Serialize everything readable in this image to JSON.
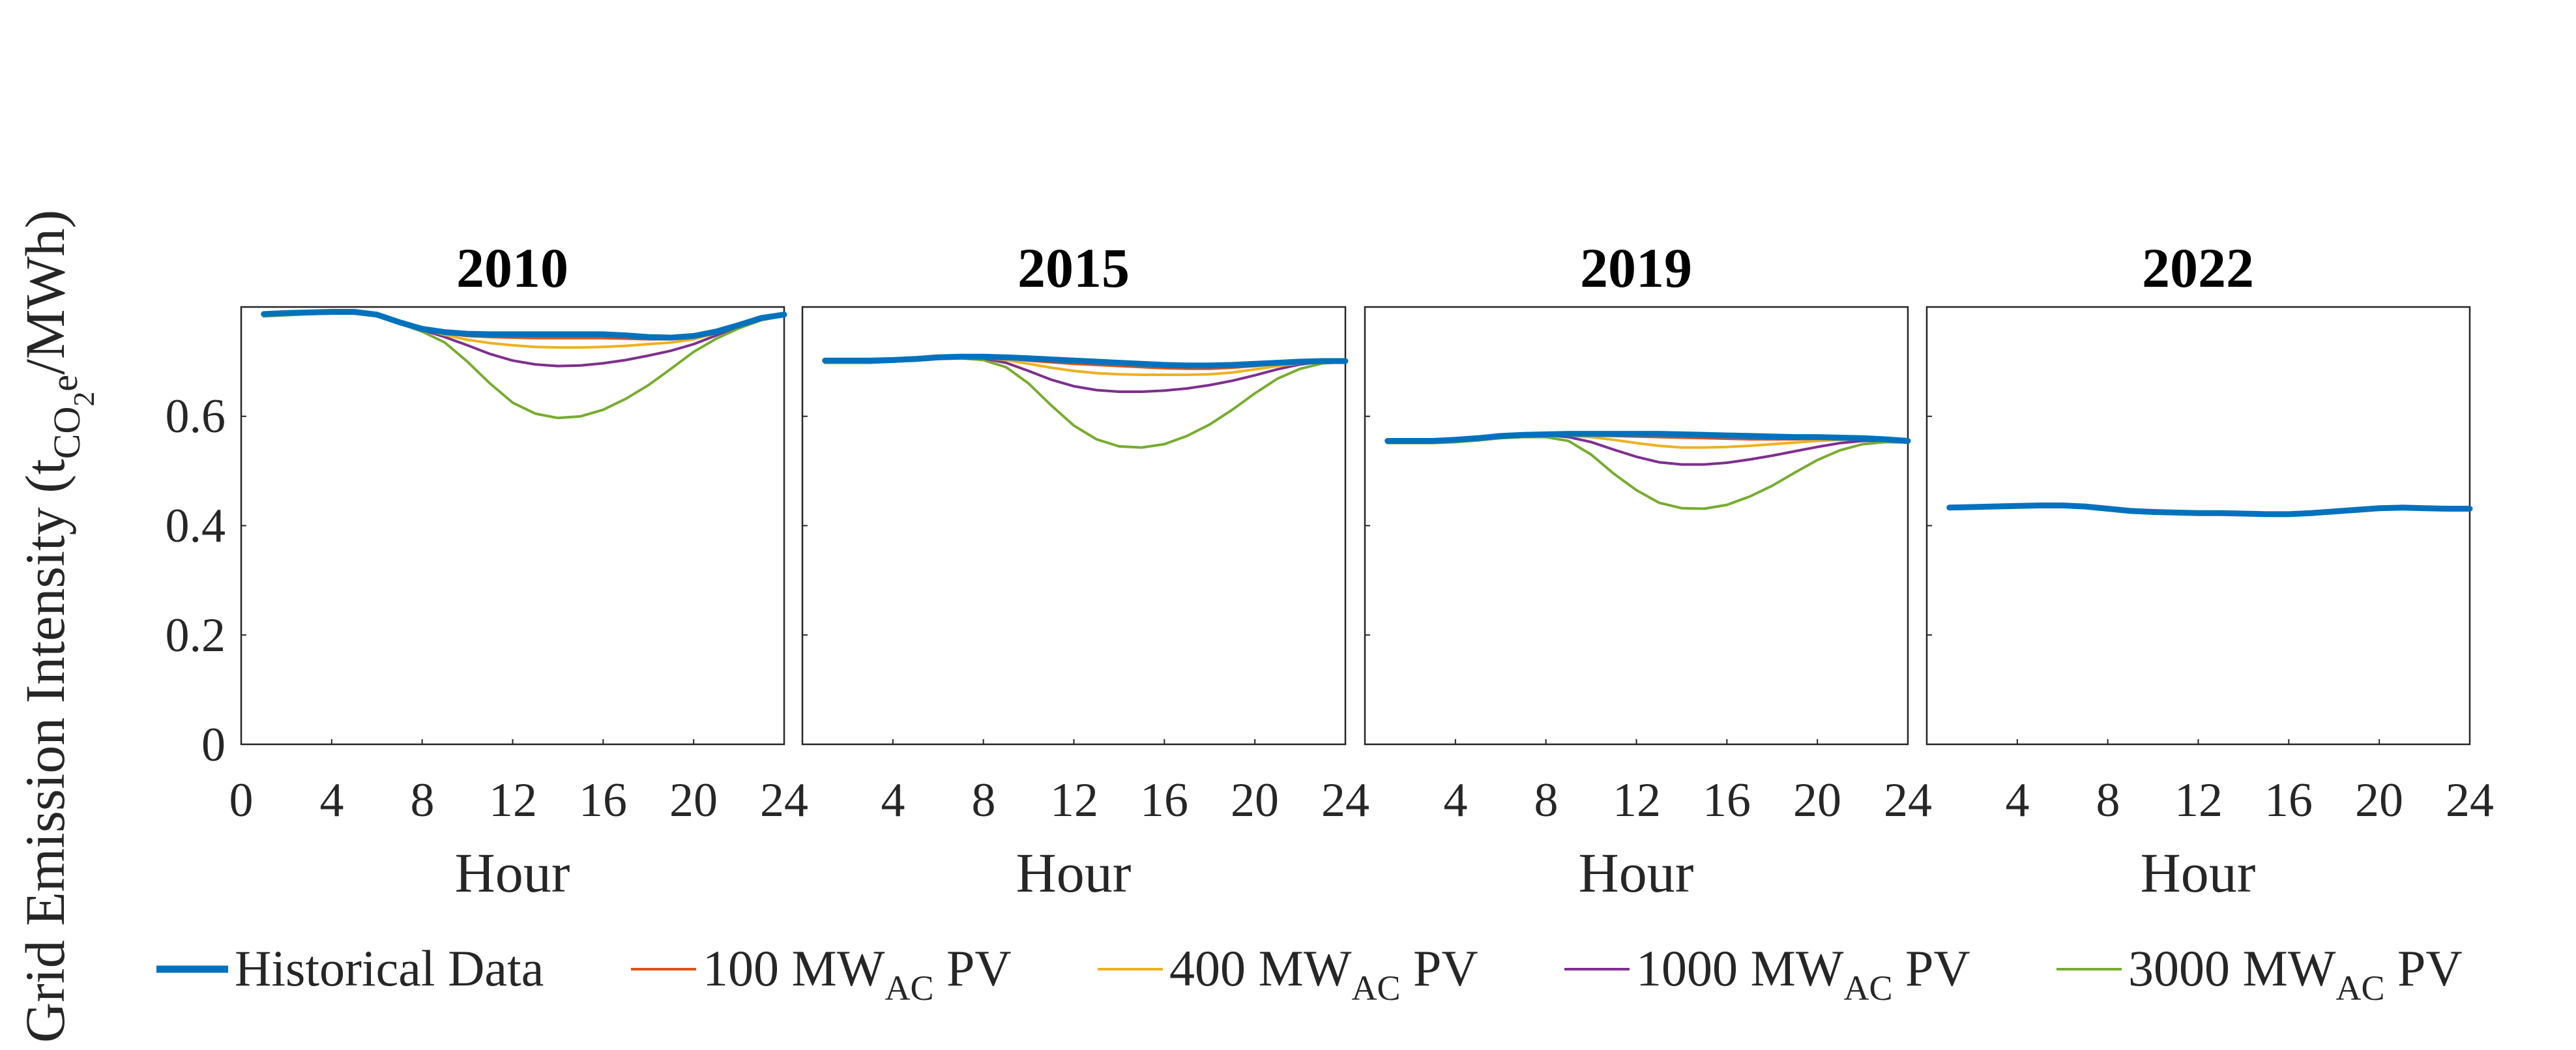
{
  "chart_data": {
    "type": "line",
    "ylabel": {
      "prefix": "Grid Emission Intensity (t",
      "sub_CO": "CO",
      "sub_2": "2",
      "sub_e": "e",
      "suffix": "/MWh)"
    },
    "ylim": [
      0,
      0.8
    ],
    "yticks": [
      0,
      0.2,
      0.4,
      0.6
    ],
    "ytick_labels": [
      "0",
      "0.2",
      "0.4",
      "0.6"
    ],
    "xlim": [
      0,
      24
    ],
    "xlabel": "Hour",
    "hours": [
      1,
      2,
      3,
      4,
      5,
      6,
      7,
      8,
      9,
      10,
      11,
      12,
      13,
      14,
      15,
      16,
      17,
      18,
      19,
      20,
      21,
      22,
      23,
      24
    ],
    "legend": [
      {
        "key": "historical",
        "label": "Historical Data",
        "main": "Historical Data",
        "sub": "",
        "tail": "",
        "color": "#0072BD"
      },
      {
        "key": "pv100",
        "label": "100 MWAC PV",
        "main": "100 MW",
        "sub": "AC",
        "tail": " PV",
        "color": "#D95319"
      },
      {
        "key": "pv400",
        "label": "400 MWAC PV",
        "main": "400 MW",
        "sub": "AC",
        "tail": " PV",
        "color": "#EDB120"
      },
      {
        "key": "pv1000",
        "label": "1000 MWAC PV",
        "main": "1000 MW",
        "sub": "AC",
        "tail": " PV",
        "color": "#7E2F8E"
      },
      {
        "key": "pv3000",
        "label": "3000 MWAC PV",
        "main": "3000 MW",
        "sub": "AC",
        "tail": " PV",
        "color": "#77AC30"
      }
    ],
    "panels": [
      {
        "title": "2010",
        "xticks": [
          "0",
          "4",
          "8",
          "12",
          "16",
          "20",
          "24"
        ],
        "series": {
          "historical": [
            0.787,
            0.789,
            0.79,
            0.791,
            0.791,
            0.786,
            0.772,
            0.76,
            0.754,
            0.751,
            0.75,
            0.75,
            0.75,
            0.75,
            0.75,
            0.75,
            0.748,
            0.745,
            0.744,
            0.747,
            0.755,
            0.767,
            0.78,
            0.786
          ],
          "pv100": [
            0.787,
            0.789,
            0.79,
            0.791,
            0.791,
            0.786,
            0.772,
            0.76,
            0.752,
            0.747,
            0.745,
            0.744,
            0.743,
            0.743,
            0.743,
            0.743,
            0.742,
            0.741,
            0.741,
            0.745,
            0.754,
            0.767,
            0.78,
            0.786
          ],
          "pv400": [
            0.787,
            0.789,
            0.79,
            0.791,
            0.791,
            0.786,
            0.772,
            0.759,
            0.749,
            0.74,
            0.734,
            0.73,
            0.727,
            0.726,
            0.726,
            0.727,
            0.729,
            0.732,
            0.735,
            0.741,
            0.752,
            0.766,
            0.78,
            0.786
          ],
          "pv1000": [
            0.787,
            0.789,
            0.79,
            0.791,
            0.791,
            0.786,
            0.772,
            0.758,
            0.745,
            0.73,
            0.714,
            0.702,
            0.695,
            0.692,
            0.693,
            0.697,
            0.703,
            0.711,
            0.72,
            0.732,
            0.748,
            0.765,
            0.779,
            0.786
          ],
          "pv3000": [
            0.783,
            0.785,
            0.787,
            0.788,
            0.788,
            0.783,
            0.77,
            0.755,
            0.735,
            0.7,
            0.66,
            0.625,
            0.605,
            0.597,
            0.6,
            0.612,
            0.632,
            0.657,
            0.687,
            0.718,
            0.742,
            0.761,
            0.776,
            0.784
          ]
        }
      },
      {
        "title": "2015",
        "xticks": [
          "4",
          "8",
          "12",
          "16",
          "20",
          "24"
        ],
        "series": {
          "historical": [
            0.702,
            0.702,
            0.702,
            0.703,
            0.705,
            0.708,
            0.709,
            0.709,
            0.708,
            0.706,
            0.704,
            0.702,
            0.7,
            0.698,
            0.696,
            0.694,
            0.693,
            0.693,
            0.694,
            0.696,
            0.698,
            0.7,
            0.701,
            0.701
          ],
          "pv100": [
            0.702,
            0.702,
            0.702,
            0.703,
            0.705,
            0.708,
            0.709,
            0.708,
            0.706,
            0.702,
            0.699,
            0.696,
            0.694,
            0.692,
            0.69,
            0.688,
            0.687,
            0.687,
            0.689,
            0.692,
            0.696,
            0.699,
            0.701,
            0.701
          ],
          "pv400": [
            0.702,
            0.702,
            0.702,
            0.703,
            0.705,
            0.708,
            0.709,
            0.707,
            0.703,
            0.696,
            0.689,
            0.683,
            0.679,
            0.677,
            0.676,
            0.676,
            0.676,
            0.677,
            0.68,
            0.686,
            0.692,
            0.697,
            0.7,
            0.701
          ],
          "pv1000": [
            0.702,
            0.702,
            0.702,
            0.703,
            0.705,
            0.708,
            0.709,
            0.706,
            0.698,
            0.683,
            0.667,
            0.655,
            0.648,
            0.645,
            0.645,
            0.647,
            0.651,
            0.657,
            0.665,
            0.675,
            0.686,
            0.695,
            0.7,
            0.701
          ],
          "pv3000": [
            0.698,
            0.698,
            0.698,
            0.7,
            0.702,
            0.705,
            0.706,
            0.703,
            0.69,
            0.66,
            0.62,
            0.583,
            0.558,
            0.545,
            0.543,
            0.549,
            0.564,
            0.585,
            0.612,
            0.642,
            0.669,
            0.687,
            0.697,
            0.699
          ]
        }
      },
      {
        "title": "2019",
        "xticks": [
          "4",
          "8",
          "12",
          "16",
          "20",
          "24"
        ],
        "series": {
          "historical": [
            0.555,
            0.555,
            0.555,
            0.557,
            0.56,
            0.564,
            0.566,
            0.567,
            0.568,
            0.568,
            0.568,
            0.568,
            0.568,
            0.567,
            0.566,
            0.565,
            0.564,
            0.563,
            0.562,
            0.562,
            0.561,
            0.56,
            0.558,
            0.555
          ],
          "pv100": [
            0.555,
            0.555,
            0.555,
            0.557,
            0.56,
            0.564,
            0.566,
            0.566,
            0.566,
            0.565,
            0.564,
            0.563,
            0.562,
            0.561,
            0.56,
            0.559,
            0.558,
            0.558,
            0.558,
            0.559,
            0.559,
            0.559,
            0.558,
            0.555
          ],
          "pv400": [
            0.555,
            0.555,
            0.555,
            0.557,
            0.56,
            0.564,
            0.566,
            0.566,
            0.565,
            0.562,
            0.557,
            0.551,
            0.546,
            0.543,
            0.543,
            0.544,
            0.546,
            0.549,
            0.552,
            0.555,
            0.557,
            0.558,
            0.557,
            0.555
          ],
          "pv1000": [
            0.555,
            0.555,
            0.555,
            0.557,
            0.56,
            0.564,
            0.566,
            0.566,
            0.562,
            0.553,
            0.539,
            0.526,
            0.516,
            0.512,
            0.512,
            0.515,
            0.521,
            0.528,
            0.536,
            0.544,
            0.551,
            0.555,
            0.556,
            0.555
          ],
          "pv3000": [
            0.551,
            0.551,
            0.551,
            0.553,
            0.556,
            0.56,
            0.562,
            0.562,
            0.555,
            0.53,
            0.495,
            0.465,
            0.442,
            0.432,
            0.431,
            0.438,
            0.453,
            0.473,
            0.497,
            0.52,
            0.538,
            0.549,
            0.553,
            0.552
          ]
        }
      },
      {
        "title": "2022",
        "xticks": [
          "4",
          "8",
          "12",
          "16",
          "20",
          "24"
        ],
        "series": {
          "historical": [
            0.433,
            0.434,
            0.435,
            0.436,
            0.437,
            0.437,
            0.435,
            0.431,
            0.427,
            0.425,
            0.424,
            0.423,
            0.423,
            0.422,
            0.421,
            0.421,
            0.423,
            0.426,
            0.429,
            0.432,
            0.433,
            0.432,
            0.431,
            0.431
          ]
        }
      }
    ]
  }
}
